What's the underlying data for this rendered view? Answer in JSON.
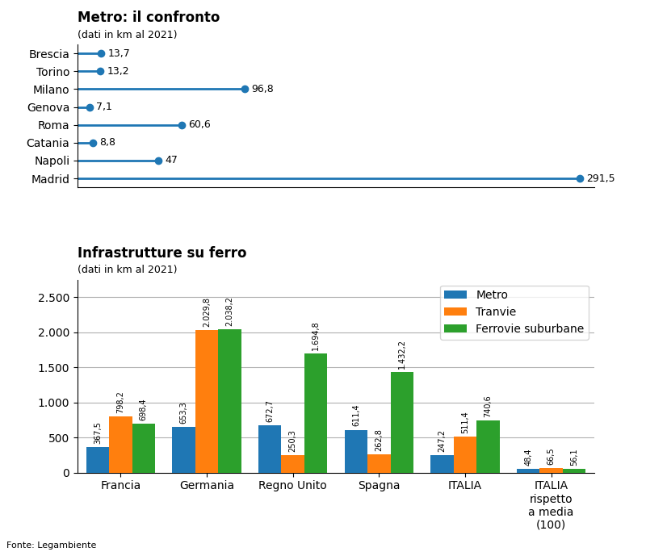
{
  "chart_data": [
    {
      "type": "lollipop",
      "title": "Metro: il confronto",
      "subtitle": "(dati in km al 2021)",
      "orientation": "horizontal",
      "categories": [
        "Brescia",
        "Torino",
        "Milano",
        "Genova",
        "Roma",
        "Catania",
        "Napoli",
        "Madrid"
      ],
      "values": [
        13.7,
        13.2,
        96.8,
        7.1,
        60.6,
        8.8,
        47.0,
        291.5
      ],
      "value_labels": [
        "13,7",
        "13,2",
        "96,8",
        "7,1",
        "60,6",
        "8,8",
        "47",
        "291,5"
      ],
      "data_labels": true,
      "xlim": [
        0,
        300
      ],
      "xticks": [],
      "tick_labels": "y"
    },
    {
      "type": "bar",
      "title": "Infrastrutture su ferro",
      "subtitle": "(dati in km al 2021)",
      "categories": [
        "Francia",
        "Germania",
        "Regno Unito",
        "Spagna",
        "ITALIA",
        "ITALIA\nrispetto\na media\n(100)"
      ],
      "series": [
        {
          "name": "Metro",
          "values": [
            367.5,
            653.3,
            672.7,
            611.4,
            247.2,
            48.4
          ],
          "value_labels": [
            "367,5",
            "653,3",
            "672,7",
            "611,4",
            "247,2",
            "48,4"
          ]
        },
        {
          "name": "Tranvie",
          "values": [
            798.2,
            2029.8,
            250.3,
            262.8,
            511.4,
            66.5
          ],
          "value_labels": [
            "798,2",
            "2.029,8",
            "250,3",
            "262,8",
            "511,4",
            "66,5"
          ]
        },
        {
          "name": "Ferrovie suburbane",
          "values": [
            698.4,
            2038.2,
            1694.8,
            1432.2,
            740.6,
            56.1
          ],
          "value_labels": [
            "698,4",
            "2.038,2",
            "1.694,8",
            "1.432,2",
            "740,6",
            "56,1"
          ]
        }
      ],
      "data_labels": true,
      "ylim": [
        0,
        2750
      ],
      "yticks": [
        0,
        500,
        {
          "value": 1000,
          "label": "1.000"
        },
        {
          "value": 1500,
          "label": "1.500"
        },
        {
          "value": 2000,
          "label": "2.000"
        },
        {
          "value": 2500,
          "label": "2.500"
        }
      ],
      "grid": true,
      "legend": "upper right",
      "annotation": "Fonte: Legambiente"
    }
  ]
}
